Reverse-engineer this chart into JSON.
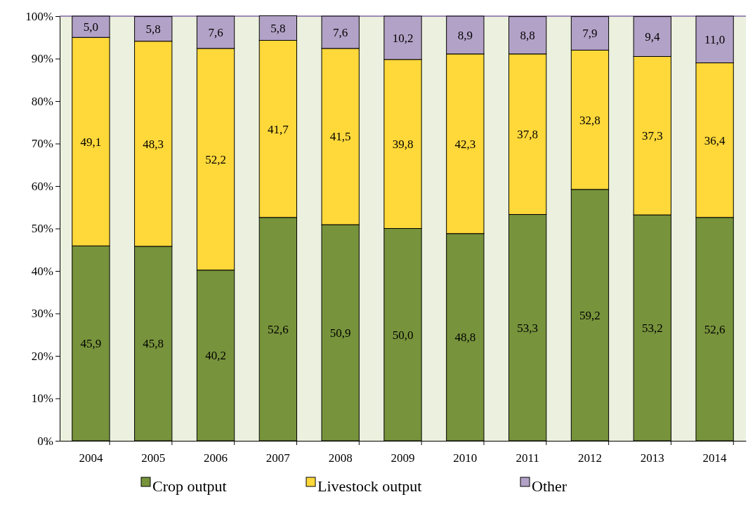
{
  "chart_data": {
    "type": "bar",
    "stacked": true,
    "categories": [
      "2004",
      "2005",
      "2006",
      "2007",
      "2008",
      "2009",
      "2010",
      "2011",
      "2012",
      "2013",
      "2014"
    ],
    "series": [
      {
        "name": "Crop output",
        "color": "#77933c",
        "values": [
          45.9,
          45.8,
          40.2,
          52.6,
          50.9,
          50.0,
          48.8,
          53.3,
          59.2,
          53.2,
          52.6
        ],
        "value_labels": [
          "45,9",
          "45,8",
          "40,2",
          "52,6",
          "50,9",
          "50,0",
          "48,8",
          "53,3",
          "59,2",
          "53,2",
          "52,6"
        ]
      },
      {
        "name": "Livestock output",
        "color": "#ffd83a",
        "values": [
          49.1,
          48.3,
          52.2,
          41.7,
          41.5,
          39.8,
          42.3,
          37.8,
          32.8,
          37.3,
          36.4
        ],
        "value_labels": [
          "49,1",
          "48,3",
          "52,2",
          "41,7",
          "41,5",
          "39,8",
          "42,3",
          "37,8",
          "32,8",
          "37,3",
          "36,4"
        ]
      },
      {
        "name": "Other",
        "color": "#b3a2c7",
        "values": [
          5.0,
          5.8,
          7.6,
          5.8,
          7.6,
          10.2,
          8.9,
          8.8,
          7.9,
          9.4,
          11.0
        ],
        "value_labels": [
          "5,0",
          "5,8",
          "7,6",
          "5,8",
          "7,6",
          "10,2",
          "8,9",
          "8,8",
          "7,9",
          "9,4",
          "11,0"
        ]
      }
    ],
    "ylim": [
      0,
      100
    ],
    "yticks": [
      {
        "value": 0,
        "label": "0%"
      },
      {
        "value": 10,
        "label": "10%"
      },
      {
        "value": 20,
        "label": "20%"
      },
      {
        "value": 30,
        "label": "30%"
      },
      {
        "value": 40,
        "label": "40%"
      },
      {
        "value": 50,
        "label": "50%"
      },
      {
        "value": 60,
        "label": "60%"
      },
      {
        "value": 70,
        "label": "70%"
      },
      {
        "value": 80,
        "label": "80%"
      },
      {
        "value": 90,
        "label": "90%"
      },
      {
        "value": 100,
        "label": "100%"
      }
    ],
    "grid": false,
    "legend": "bottom"
  }
}
